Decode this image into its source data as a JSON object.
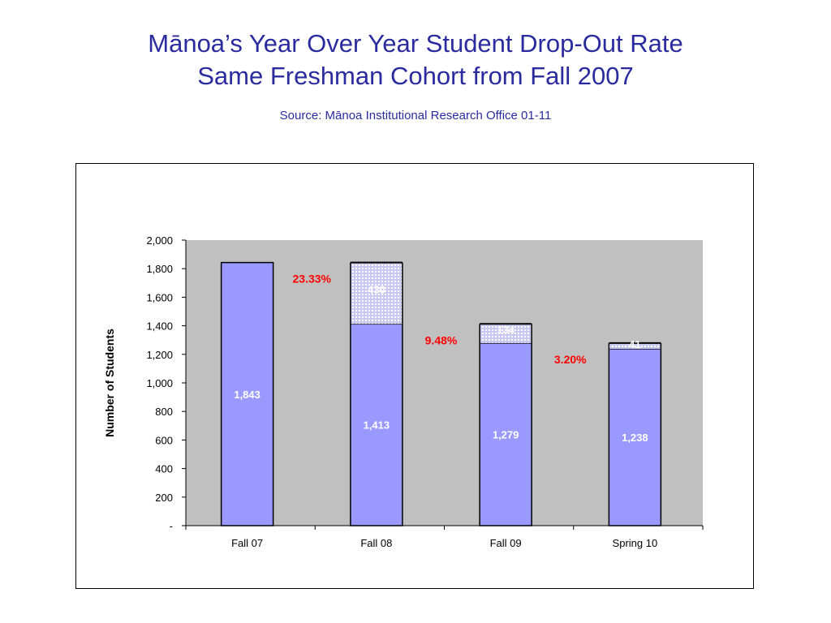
{
  "header": {
    "title_line1": "Mānoa’s Year Over Year Student Drop-Out Rate",
    "title_line2": "Same Freshman Cohort from Fall 2007",
    "source": "Source: Mānoa Institutional Research Office 01-11"
  },
  "chart_data": {
    "type": "bar",
    "stacked": true,
    "categories": [
      "Fall 07",
      "Fall 08",
      "Fall 09",
      "Spring 10"
    ],
    "series": [
      {
        "values": [
          1843,
          1413,
          1279,
          1238
        ],
        "value_labels": [
          "1,843",
          "1,413",
          "1,279",
          "1,238"
        ]
      },
      {
        "values": [
          0,
          430,
          134,
          41
        ],
        "value_labels": [
          "",
          "430",
          "134",
          "41"
        ]
      }
    ],
    "drop_rates": [
      "23.33%",
      "9.48%",
      "3.20%"
    ],
    "ylabel": "Number of Students",
    "ylim": [
      0,
      2000
    ],
    "yticks": [
      0,
      200,
      400,
      600,
      800,
      1000,
      1200,
      1400,
      1600,
      1800,
      2000
    ],
    "ytick_labels": [
      "-",
      "200",
      "400",
      "600",
      "800",
      "1,000",
      "1,200",
      "1,400",
      "1,600",
      "1,800",
      "2,000"
    ],
    "grid": false,
    "colors": {
      "plot_bg": "#c0c0c0",
      "bar_fill": "#9999ff",
      "drop_fill": "#c8c8f0",
      "pct_text": "#ff0000",
      "title_text": "#2b2ba0"
    }
  }
}
